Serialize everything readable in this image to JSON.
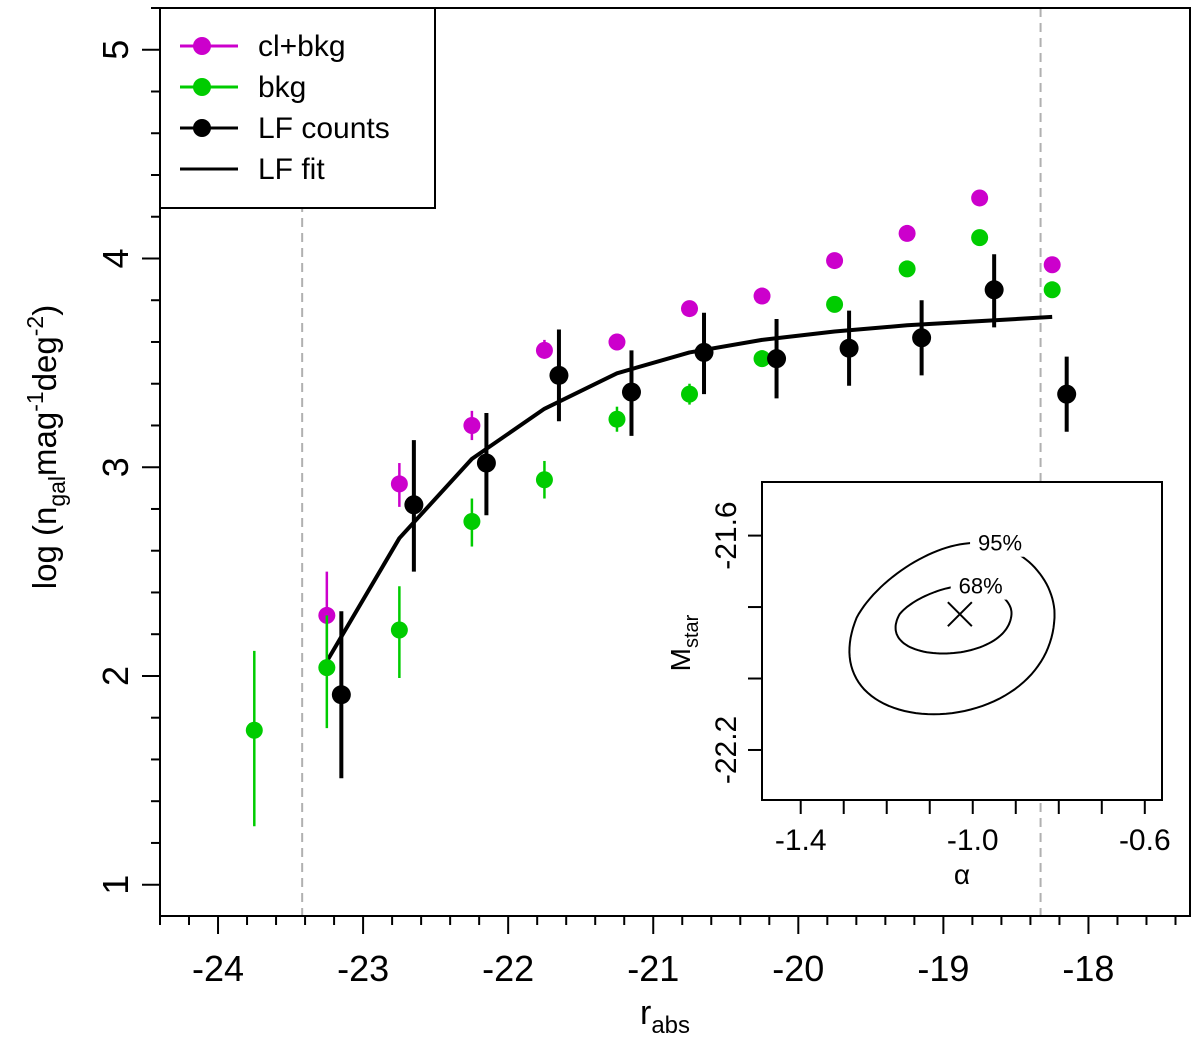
{
  "chart_data": [
    {
      "type": "scatter",
      "xlabel": "r",
      "xlabel_sub": "abs",
      "ylabel_parts": {
        "a": "log (n",
        "sub1": "gal",
        "b": "mag",
        "sup1": "-1",
        "c": "deg",
        "sup2": "-2",
        "d": ")"
      },
      "xlim": [
        -24.4,
        -17.3
      ],
      "ylim": [
        0.85,
        5.2
      ],
      "xticks": [
        -24,
        -23,
        -22,
        -21,
        -20,
        -19,
        -18
      ],
      "xtick_labels": [
        "-24",
        "-23",
        "-22",
        "-21",
        "-20",
        "-19",
        "-18"
      ],
      "yticks": [
        1,
        2,
        3,
        4,
        5
      ],
      "ytick_labels": [
        "1",
        "2",
        "3",
        "4",
        "5"
      ],
      "vlines": [
        -23.42,
        -18.33
      ],
      "legend_position": "top-left",
      "series": [
        {
          "name": "cl+bkg",
          "color": "#cc00cc",
          "points": [
            {
              "x": -23.25,
              "y": 2.29,
              "lo": 2.08,
              "hi": 2.5
            },
            {
              "x": -22.75,
              "y": 2.92,
              "lo": 2.81,
              "hi": 3.02
            },
            {
              "x": -22.25,
              "y": 3.2,
              "lo": 3.13,
              "hi": 3.27
            },
            {
              "x": -21.75,
              "y": 3.56,
              "lo": 3.52,
              "hi": 3.61
            },
            {
              "x": -21.25,
              "y": 3.6,
              "lo": 3.56,
              "hi": 3.64
            },
            {
              "x": -20.75,
              "y": 3.76,
              "lo": 3.73,
              "hi": 3.79
            },
            {
              "x": -20.25,
              "y": 3.82,
              "lo": 3.79,
              "hi": 3.85
            },
            {
              "x": -19.75,
              "y": 3.99,
              "lo": 3.97,
              "hi": 4.01
            },
            {
              "x": -19.25,
              "y": 4.12,
              "lo": 4.1,
              "hi": 4.14
            },
            {
              "x": -18.75,
              "y": 4.29,
              "lo": 4.27,
              "hi": 4.31
            },
            {
              "x": -18.25,
              "y": 3.97,
              "lo": 3.95,
              "hi": 3.99
            }
          ]
        },
        {
          "name": "bkg",
          "color": "#00cc00",
          "points": [
            {
              "x": -23.75,
              "y": 1.74,
              "lo": 1.28,
              "hi": 2.12
            },
            {
              "x": -23.25,
              "y": 2.04,
              "lo": 1.75,
              "hi": 2.29
            },
            {
              "x": -22.75,
              "y": 2.22,
              "lo": 1.99,
              "hi": 2.43
            },
            {
              "x": -22.25,
              "y": 2.74,
              "lo": 2.62,
              "hi": 2.85
            },
            {
              "x": -21.75,
              "y": 2.94,
              "lo": 2.85,
              "hi": 3.03
            },
            {
              "x": -21.25,
              "y": 3.23,
              "lo": 3.17,
              "hi": 3.29
            },
            {
              "x": -20.75,
              "y": 3.35,
              "lo": 3.3,
              "hi": 3.4
            },
            {
              "x": -20.25,
              "y": 3.52,
              "lo": 3.48,
              "hi": 3.56
            },
            {
              "x": -19.75,
              "y": 3.78,
              "lo": 3.75,
              "hi": 3.81
            },
            {
              "x": -19.25,
              "y": 3.95,
              "lo": 3.93,
              "hi": 3.97
            },
            {
              "x": -18.75,
              "y": 4.1,
              "lo": 4.08,
              "hi": 4.12
            },
            {
              "x": -18.25,
              "y": 3.85,
              "lo": 3.83,
              "hi": 3.87
            }
          ]
        },
        {
          "name": "LF counts",
          "color": "#000000",
          "points": [
            {
              "x": -23.15,
              "y": 1.91,
              "lo": 1.51,
              "hi": 2.31
            },
            {
              "x": -22.65,
              "y": 2.82,
              "lo": 2.5,
              "hi": 3.13
            },
            {
              "x": -22.15,
              "y": 3.02,
              "lo": 2.77,
              "hi": 3.26
            },
            {
              "x": -21.65,
              "y": 3.44,
              "lo": 3.22,
              "hi": 3.66
            },
            {
              "x": -21.15,
              "y": 3.36,
              "lo": 3.15,
              "hi": 3.56
            },
            {
              "x": -20.65,
              "y": 3.55,
              "lo": 3.35,
              "hi": 3.74
            },
            {
              "x": -20.15,
              "y": 3.52,
              "lo": 3.33,
              "hi": 3.71
            },
            {
              "x": -19.65,
              "y": 3.57,
              "lo": 3.39,
              "hi": 3.75
            },
            {
              "x": -19.15,
              "y": 3.62,
              "lo": 3.44,
              "hi": 3.8
            },
            {
              "x": -18.65,
              "y": 3.85,
              "lo": 3.67,
              "hi": 4.02
            },
            {
              "x": -18.15,
              "y": 3.35,
              "lo": 3.17,
              "hi": 3.53
            }
          ]
        }
      ],
      "fit": {
        "name": "LF fit",
        "color": "#000000",
        "x": [
          -23.25,
          -22.75,
          -22.25,
          -21.75,
          -21.25,
          -20.75,
          -20.25,
          -19.75,
          -19.25,
          -18.75,
          -18.25
        ],
        "y": [
          2.07,
          2.66,
          3.04,
          3.28,
          3.45,
          3.55,
          3.61,
          3.65,
          3.68,
          3.7,
          3.72
        ]
      }
    },
    {
      "type": "line",
      "subtype": "confidence-contours",
      "xlabel": "α",
      "ylabel": "M",
      "ylabel_sub": "star",
      "xlim": [
        -1.49,
        -0.56
      ],
      "ylim": [
        -22.34,
        -21.45
      ],
      "xticks": [
        -1.4,
        -1.3,
        -1.2,
        -1.1,
        -1.0,
        -0.9,
        -0.8,
        -0.7,
        -0.6
      ],
      "xtick_labels": [
        "-1.4",
        "-1.0",
        "-0.6"
      ],
      "xtick_label_values": [
        -1.4,
        -1.0,
        -0.6
      ],
      "yticks": [
        -22.2,
        -22.0,
        -21.8,
        -21.6
      ],
      "ytick_labels": [
        "-22.2",
        "-21.6"
      ],
      "ytick_label_values": [
        -22.2,
        -21.6
      ],
      "best_fit": {
        "alpha": -1.03,
        "mstar": -21.82
      },
      "contours": [
        {
          "label": "68%",
          "center": [
            -1.04,
            -21.82
          ],
          "alpha_halfwidth": 0.13,
          "mstar_top": -21.74,
          "mstar_bottom": -21.93
        },
        {
          "label": "95%",
          "center": [
            -1.04,
            -21.83
          ],
          "alpha_halfwidth": 0.23,
          "mstar_top": -21.62,
          "mstar_bottom": -22.1
        }
      ]
    }
  ]
}
